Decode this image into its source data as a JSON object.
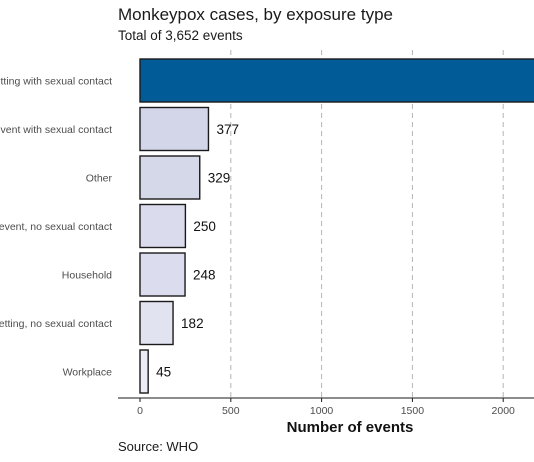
{
  "chart_data": {
    "type": "bar",
    "orientation": "horizontal",
    "title": "Monkeypox cases, by exposure type",
    "subtitle": "Total of 3,652 events",
    "source": "Source: WHO",
    "xlabel": "Number of events",
    "ylabel": "",
    "xlim": [
      0,
      2200
    ],
    "xticks": [
      0,
      500,
      1000,
      1500,
      2000
    ],
    "grid": "vertical dashed",
    "legend": "none",
    "categories": [
      "Party setting with sexual contact",
      "Large event with sexual contact",
      "Other",
      "Large event, no sexual contact",
      "Household",
      "Party setting, no sexual contact",
      "Workplace"
    ],
    "values": [
      2221,
      377,
      329,
      250,
      248,
      182,
      45
    ],
    "value_labels": [
      "",
      "377",
      "329",
      "250",
      "248",
      "182",
      "45"
    ],
    "colors": [
      "#005b96",
      "#d2d6e8",
      "#d5d8e9",
      "#dadced",
      "#dbddee",
      "#e1e3f1",
      "#ebecf5"
    ]
  }
}
